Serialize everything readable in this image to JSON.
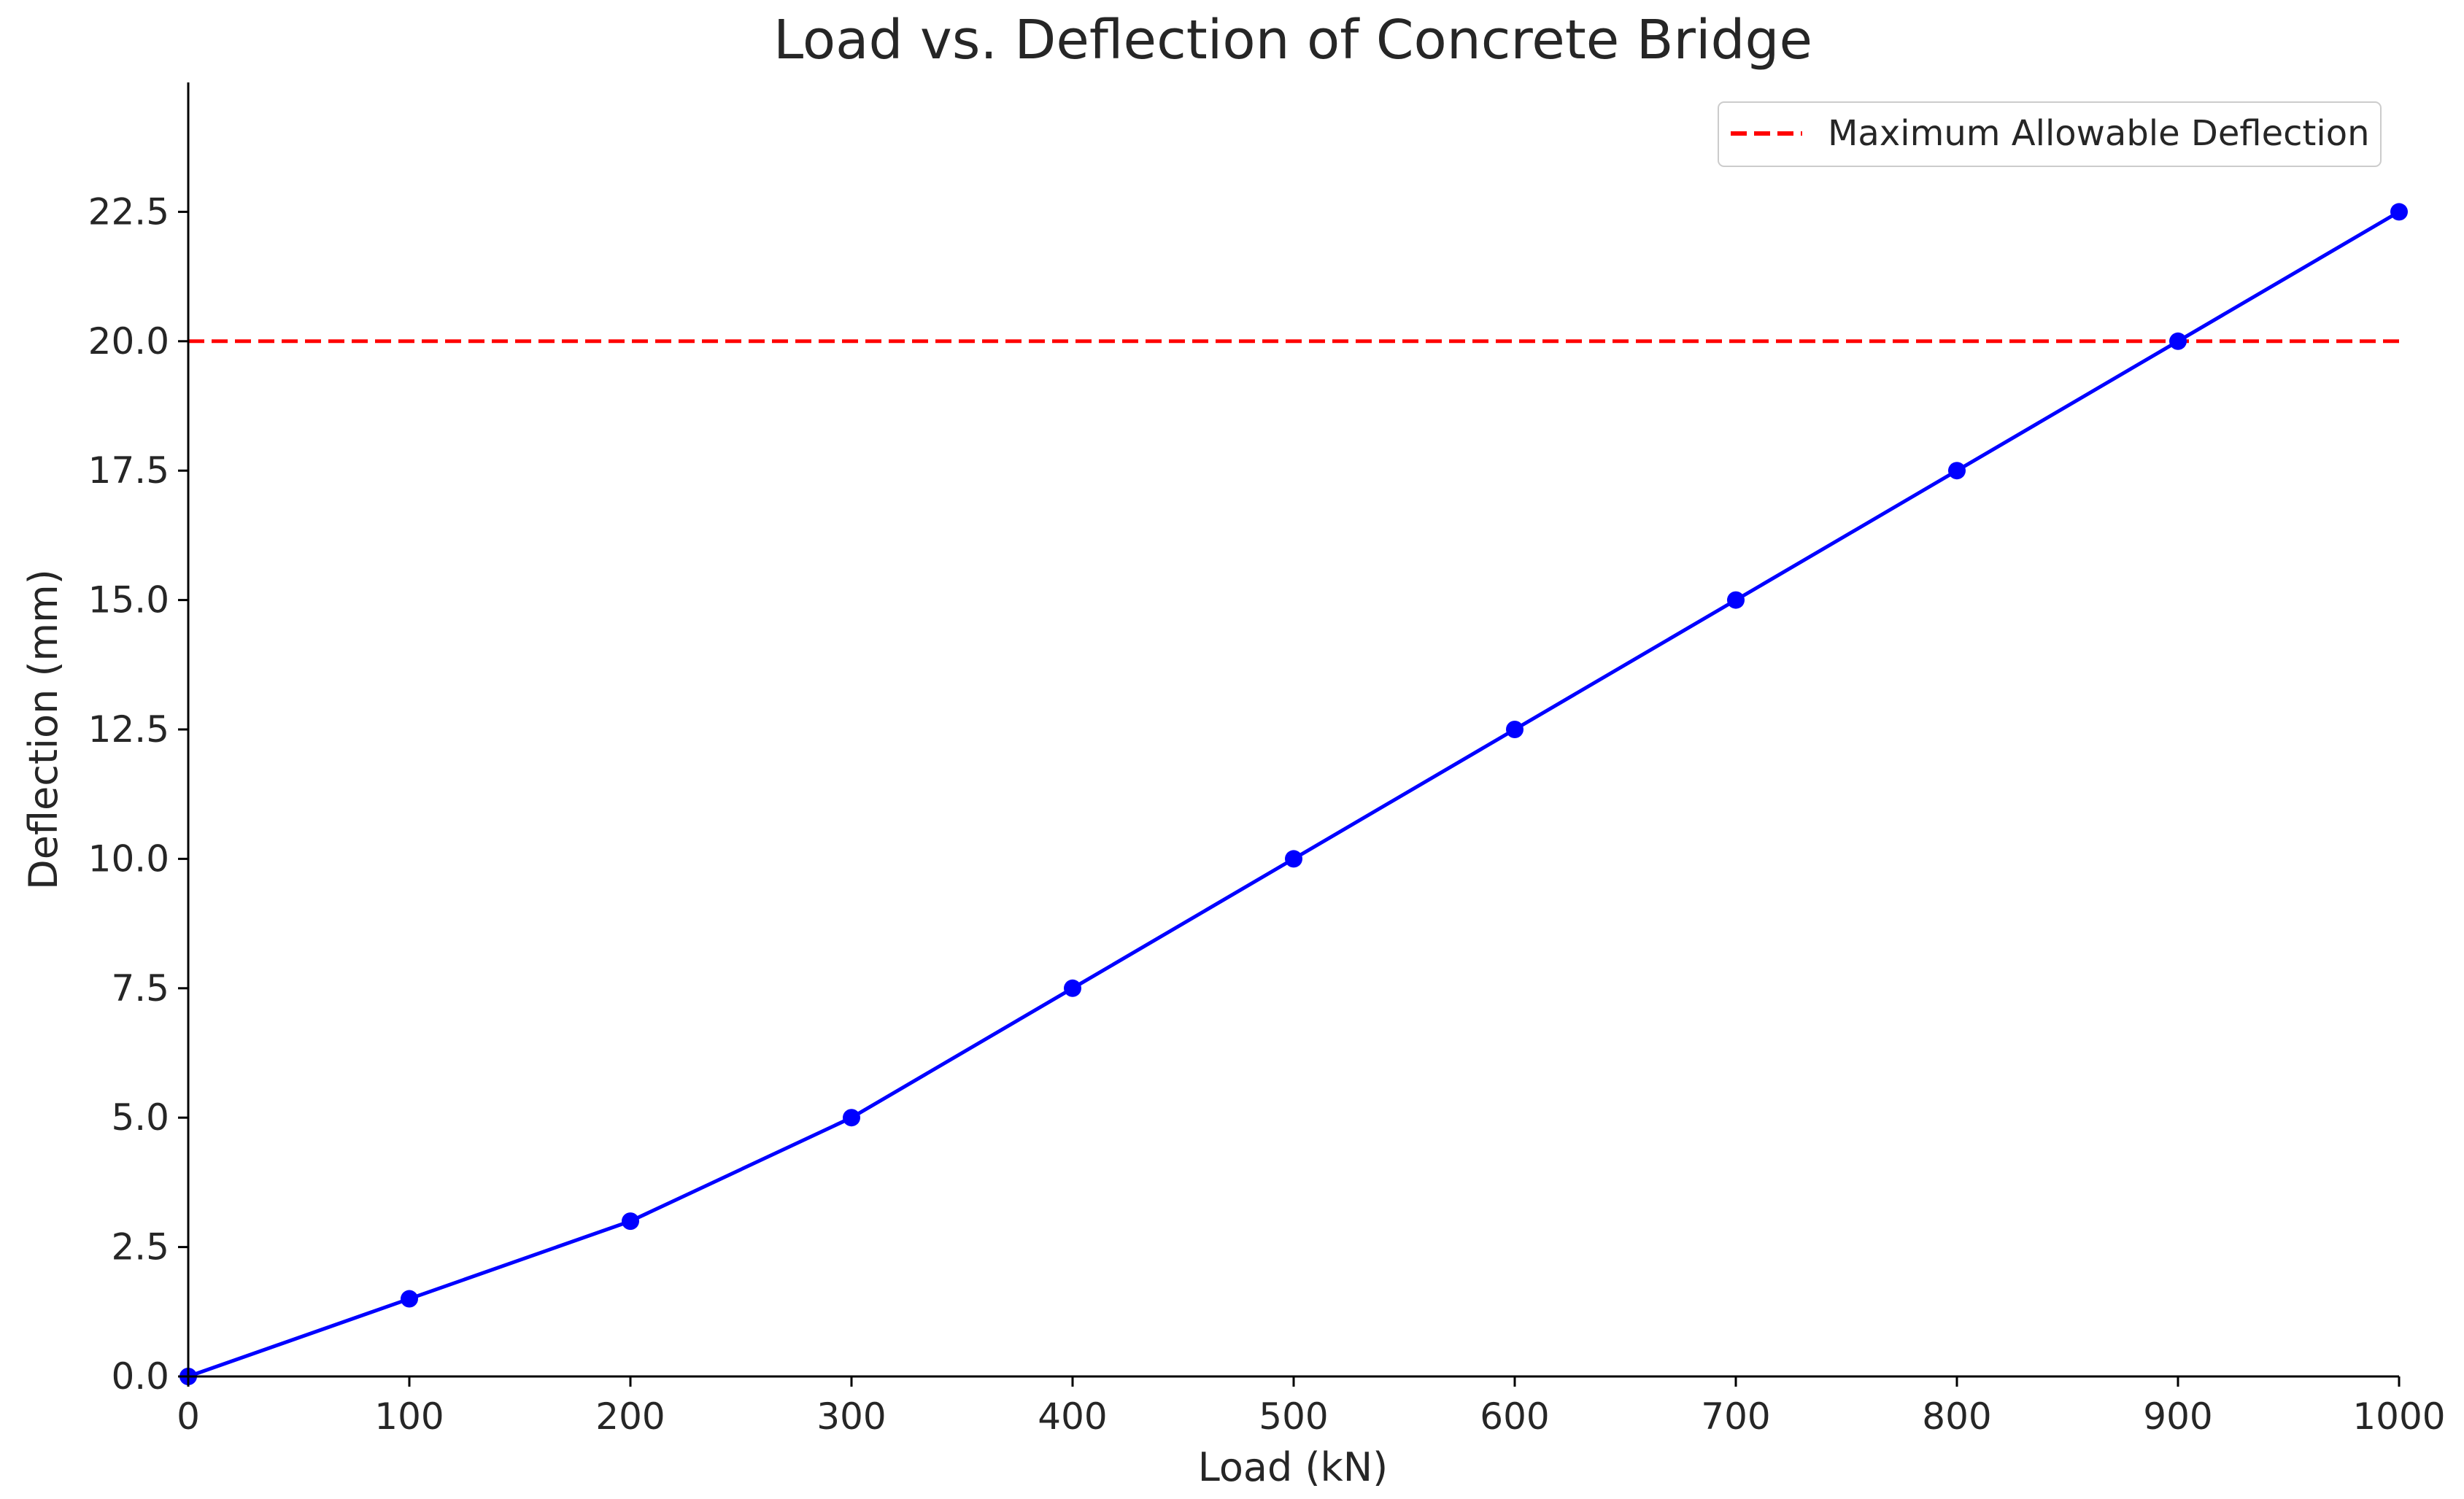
{
  "chart_data": {
    "type": "line",
    "title": "Load vs. Deflection of Concrete Bridge",
    "xlabel": "Load (kN)",
    "ylabel": "Deflection (mm)",
    "xlim": [
      0,
      1000
    ],
    "ylim": [
      0,
      25
    ],
    "xticks": [
      0,
      100,
      200,
      300,
      400,
      500,
      600,
      700,
      800,
      900,
      1000
    ],
    "xtick_labels": [
      "0",
      "100",
      "200",
      "300",
      "400",
      "500",
      "600",
      "700",
      "800",
      "900",
      "1000"
    ],
    "yticks": [
      0,
      2.5,
      5,
      7.5,
      10,
      12.5,
      15,
      17.5,
      20,
      22.5
    ],
    "ytick_labels": [
      "0.0",
      "2.5",
      "5.0",
      "7.5",
      "10.0",
      "12.5",
      "15.0",
      "17.5",
      "20.0",
      "22.5"
    ],
    "grid": false,
    "legend_position": "top-right",
    "series": [
      {
        "x": [
          0,
          100,
          200,
          300,
          400,
          500,
          600,
          700,
          800,
          900,
          1000
        ],
        "y": [
          0,
          1.5,
          3,
          5,
          7.5,
          10,
          12.5,
          15,
          17.5,
          20,
          22.5
        ],
        "color": "#0000ff",
        "marker": "circle"
      }
    ],
    "reference_lines": [
      {
        "name": "Maximum Allowable Deflection",
        "orientation": "horizontal",
        "y": 20,
        "color": "#ff0000",
        "style": "dashed"
      }
    ]
  }
}
